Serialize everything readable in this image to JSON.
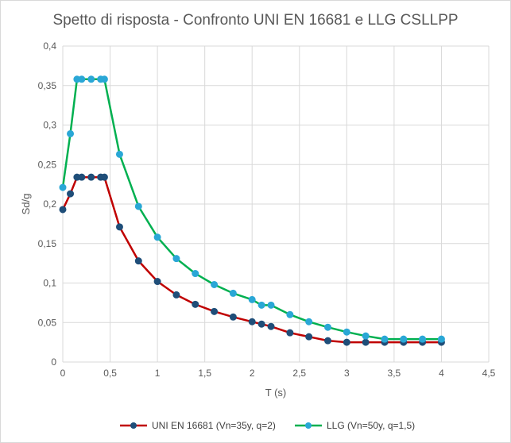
{
  "chart_data": {
    "type": "line",
    "title": "Spetto di risposta - Confronto UNI EN 16681 e LLG CSLLPP",
    "xlabel": "T (s)",
    "ylabel": "Sd/g",
    "xlim": [
      0,
      4.5
    ],
    "ylim": [
      0,
      0.4
    ],
    "x_ticks": [
      "0",
      "0,5",
      "1",
      "1,5",
      "2",
      "2,5",
      "3",
      "3,5",
      "4",
      "4,5"
    ],
    "y_ticks": [
      "0",
      "0,05",
      "0,1",
      "0,15",
      "0,2",
      "0,25",
      "0,3",
      "0,35",
      "0,4"
    ],
    "grid": "vertical and horizontal",
    "legend_position": "bottom",
    "series": [
      {
        "name": "UNI EN 16681 (Vn=35y, q=2)",
        "line_color": "#c00000",
        "marker_color": "#1f4e79",
        "points": [
          [
            0,
            0.193
          ],
          [
            0.08,
            0.213
          ],
          [
            0.15,
            0.234
          ],
          [
            0.2,
            0.234
          ],
          [
            0.3,
            0.234
          ],
          [
            0.4,
            0.234
          ],
          [
            0.44,
            0.234
          ],
          [
            0.6,
            0.171
          ],
          [
            0.8,
            0.128
          ],
          [
            1.0,
            0.102
          ],
          [
            1.2,
            0.085
          ],
          [
            1.4,
            0.073
          ],
          [
            1.6,
            0.064
          ],
          [
            1.8,
            0.057
          ],
          [
            2.0,
            0.051
          ],
          [
            2.1,
            0.048
          ],
          [
            2.2,
            0.045
          ],
          [
            2.4,
            0.037
          ],
          [
            2.6,
            0.032
          ],
          [
            2.8,
            0.027
          ],
          [
            3.0,
            0.025
          ],
          [
            3.2,
            0.025
          ],
          [
            3.4,
            0.025
          ],
          [
            3.6,
            0.025
          ],
          [
            3.8,
            0.025
          ],
          [
            4.0,
            0.025
          ]
        ]
      },
      {
        "name": "LLG (Vn=50y, q=1,5)",
        "line_color": "#00b050",
        "marker_color": "#2aa7d6",
        "points": [
          [
            0,
            0.221
          ],
          [
            0.08,
            0.289
          ],
          [
            0.15,
            0.358
          ],
          [
            0.2,
            0.358
          ],
          [
            0.3,
            0.358
          ],
          [
            0.4,
            0.358
          ],
          [
            0.44,
            0.358
          ],
          [
            0.6,
            0.263
          ],
          [
            0.8,
            0.197
          ],
          [
            1.0,
            0.158
          ],
          [
            1.2,
            0.131
          ],
          [
            1.4,
            0.112
          ],
          [
            1.6,
            0.098
          ],
          [
            1.8,
            0.087
          ],
          [
            2.0,
            0.079
          ],
          [
            2.1,
            0.072
          ],
          [
            2.2,
            0.072
          ],
          [
            2.4,
            0.06
          ],
          [
            2.6,
            0.051
          ],
          [
            2.8,
            0.044
          ],
          [
            3.0,
            0.038
          ],
          [
            3.2,
            0.033
          ],
          [
            3.4,
            0.029
          ],
          [
            3.6,
            0.029
          ],
          [
            3.8,
            0.029
          ],
          [
            4.0,
            0.029
          ]
        ]
      }
    ]
  }
}
